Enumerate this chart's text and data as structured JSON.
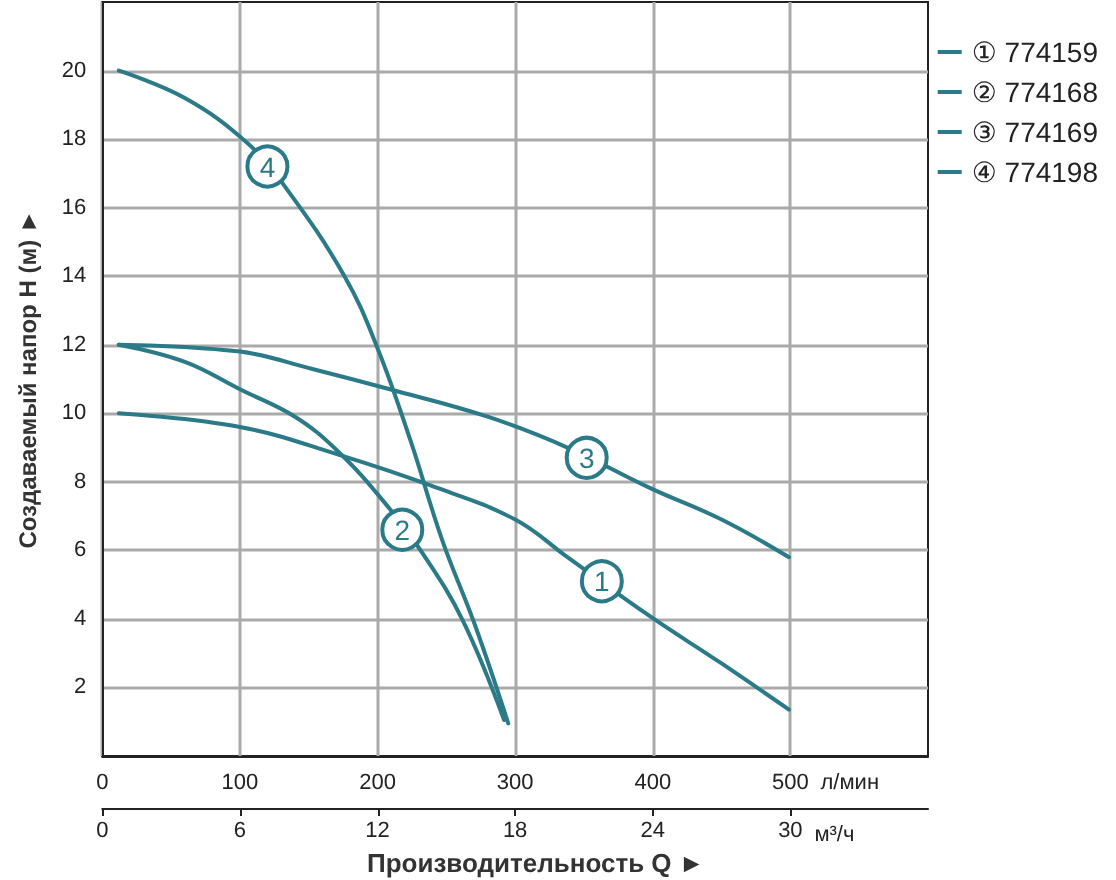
{
  "chart_data": {
    "type": "line",
    "xlabel": "л/мин",
    "x2label": "м³/ч",
    "ylabel": "Создаваемый напор H (м) ►",
    "xlim": [
      0,
      600
    ],
    "xticks": [
      0,
      100,
      200,
      300,
      400,
      500
    ],
    "x2lim": [
      0,
      36
    ],
    "x2ticks": [
      0,
      6,
      12,
      18,
      24,
      30
    ],
    "ylim": [
      0,
      22
    ],
    "yticks": [
      2,
      4,
      6,
      8,
      10,
      12,
      14,
      16,
      18,
      20
    ],
    "grid": true,
    "legend": "top right",
    "marker": "none",
    "line_style": "solid",
    "series": [
      {
        "name": "① 774159",
        "color": "#2a7a87",
        "x": [
          12,
          100,
          171,
          238,
          300,
          338,
          399,
          450,
          499
        ],
        "values": [
          10.0,
          9.6,
          8.8,
          7.9,
          6.9,
          5.8,
          4.05,
          2.7,
          1.35
        ]
      },
      {
        "name": "② 774168",
        "color": "#2a7a87",
        "x": [
          12,
          60,
          100,
          140,
          171,
          205,
          233,
          262,
          292
        ],
        "values": [
          12.0,
          11.5,
          10.7,
          9.9,
          8.9,
          7.4,
          5.9,
          3.95,
          1.05
        ]
      },
      {
        "name": "③ 774169",
        "color": "#2a7a87",
        "x": [
          12,
          100,
          152,
          209,
          280,
          338,
          399,
          450,
          499
        ],
        "values": [
          12.0,
          11.8,
          11.3,
          10.7,
          9.9,
          9.0,
          7.8,
          6.9,
          5.8
        ]
      },
      {
        "name": "④ 774198",
        "color": "#2a7a87",
        "x": [
          12,
          60,
          105,
          133,
          176,
          200,
          224,
          247,
          271,
          295
        ],
        "values": [
          20.0,
          19.2,
          17.9,
          16.6,
          14.0,
          11.9,
          9.2,
          6.3,
          3.8,
          0.95
        ]
      }
    ],
    "annotations": [
      {
        "text": "1",
        "x": 363,
        "y": 5.1
      },
      {
        "text": "2",
        "x": 218,
        "y": 6.6
      },
      {
        "text": "3",
        "x": 352,
        "y": 8.7
      },
      {
        "text": "4",
        "x": 120,
        "y": 17.2
      },
      "Производительность Q ►"
    ]
  }
}
